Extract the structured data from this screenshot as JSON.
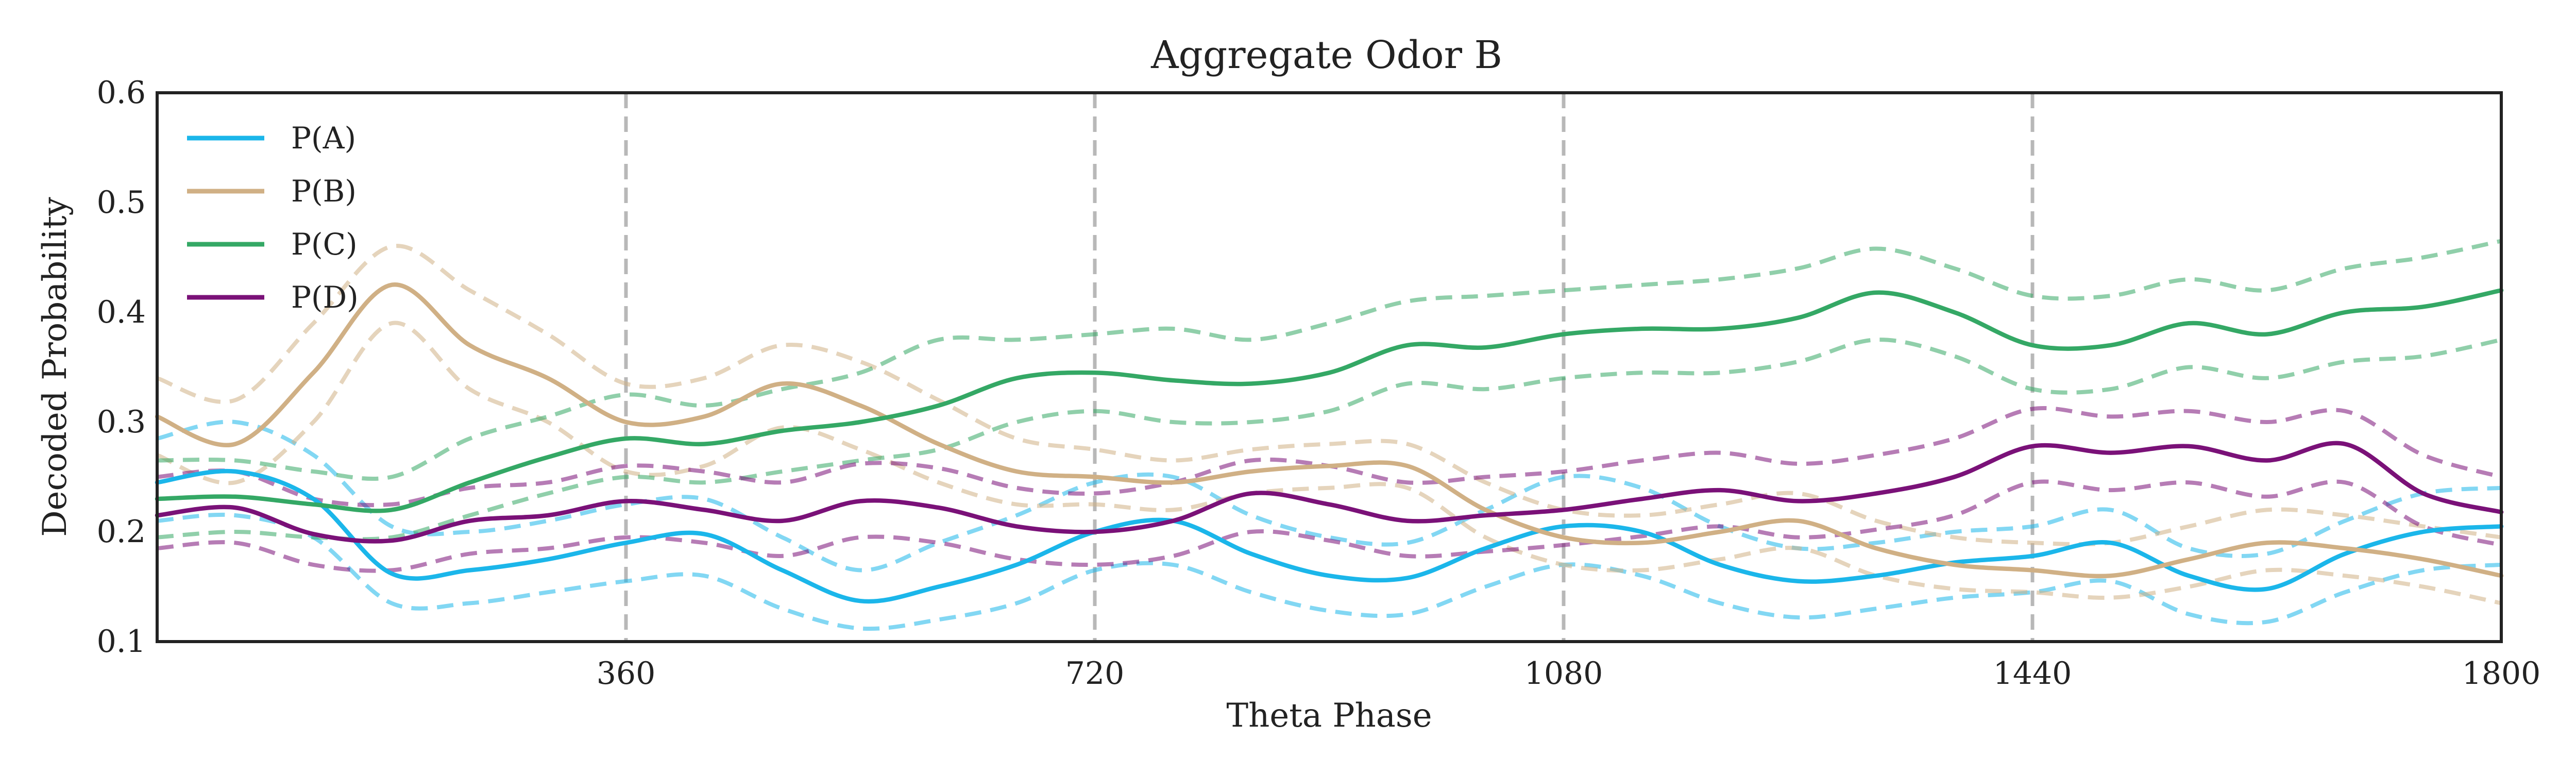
{
  "chart_data": {
    "type": "line",
    "title": "Aggregate Odor B",
    "xlabel": "Theta Phase",
    "ylabel": "Decoded Probability",
    "xlim": [
      0,
      1800
    ],
    "ylim": [
      0.1,
      0.6
    ],
    "xticks": [
      360,
      720,
      1080,
      1440,
      1800
    ],
    "xtick_labels": [
      "360",
      "720",
      "1080",
      "1440",
      "1800"
    ],
    "yticks": [
      0.1,
      0.2,
      0.3,
      0.4,
      0.5,
      0.6
    ],
    "ytick_labels": [
      "0.1",
      "0.2",
      "0.3",
      "0.4",
      "0.5",
      "0.6"
    ],
    "vertical_dashed_lines": [
      360,
      720,
      1080,
      1440
    ],
    "legend_position": "top-left",
    "grid": false,
    "x": [
      0,
      60,
      120,
      180,
      240,
      300,
      360,
      420,
      480,
      540,
      600,
      660,
      720,
      780,
      840,
      900,
      960,
      1020,
      1080,
      1140,
      1200,
      1260,
      1320,
      1380,
      1440,
      1500,
      1560,
      1620,
      1680,
      1740,
      1800
    ],
    "series": [
      {
        "name": "P(A)",
        "color": "#1bb6ea",
        "mean": [
          0.245,
          0.255,
          0.23,
          0.162,
          0.165,
          0.175,
          0.19,
          0.198,
          0.165,
          0.137,
          0.15,
          0.17,
          0.2,
          0.21,
          0.18,
          0.16,
          0.158,
          0.185,
          0.205,
          0.2,
          0.17,
          0.155,
          0.16,
          0.172,
          0.178,
          0.19,
          0.16,
          0.148,
          0.18,
          0.2,
          0.205
        ],
        "upper": [
          0.285,
          0.3,
          0.27,
          0.205,
          0.2,
          0.21,
          0.225,
          0.23,
          0.195,
          0.165,
          0.19,
          0.215,
          0.245,
          0.25,
          0.215,
          0.195,
          0.19,
          0.22,
          0.25,
          0.24,
          0.205,
          0.185,
          0.19,
          0.2,
          0.205,
          0.22,
          0.185,
          0.18,
          0.21,
          0.235,
          0.24
        ],
        "lower": [
          0.21,
          0.215,
          0.195,
          0.135,
          0.135,
          0.145,
          0.155,
          0.16,
          0.13,
          0.112,
          0.12,
          0.135,
          0.165,
          0.17,
          0.145,
          0.128,
          0.125,
          0.15,
          0.17,
          0.16,
          0.135,
          0.122,
          0.13,
          0.14,
          0.145,
          0.155,
          0.125,
          0.118,
          0.145,
          0.165,
          0.17
        ]
      },
      {
        "name": "P(B)",
        "color": "#d0b085",
        "mean": [
          0.305,
          0.28,
          0.345,
          0.425,
          0.37,
          0.34,
          0.3,
          0.305,
          0.335,
          0.315,
          0.28,
          0.255,
          0.25,
          0.245,
          0.255,
          0.26,
          0.26,
          0.22,
          0.195,
          0.19,
          0.2,
          0.21,
          0.185,
          0.17,
          0.165,
          0.16,
          0.175,
          0.19,
          0.185,
          0.175,
          0.16
        ],
        "upper": [
          0.34,
          0.32,
          0.39,
          0.46,
          0.42,
          0.38,
          0.335,
          0.34,
          0.37,
          0.355,
          0.32,
          0.285,
          0.275,
          0.265,
          0.275,
          0.28,
          0.28,
          0.245,
          0.22,
          0.215,
          0.225,
          0.235,
          0.21,
          0.195,
          0.19,
          0.19,
          0.205,
          0.22,
          0.215,
          0.205,
          0.195
        ],
        "lower": [
          0.27,
          0.245,
          0.3,
          0.39,
          0.33,
          0.3,
          0.255,
          0.26,
          0.295,
          0.275,
          0.245,
          0.225,
          0.225,
          0.22,
          0.235,
          0.24,
          0.24,
          0.195,
          0.17,
          0.165,
          0.175,
          0.185,
          0.16,
          0.148,
          0.145,
          0.14,
          0.15,
          0.165,
          0.16,
          0.15,
          0.135
        ]
      },
      {
        "name": "P(C)",
        "color": "#34a865",
        "mean": [
          0.23,
          0.232,
          0.225,
          0.22,
          0.245,
          0.268,
          0.285,
          0.28,
          0.292,
          0.3,
          0.315,
          0.34,
          0.345,
          0.338,
          0.335,
          0.345,
          0.37,
          0.368,
          0.38,
          0.385,
          0.385,
          0.395,
          0.418,
          0.4,
          0.37,
          0.37,
          0.39,
          0.38,
          0.4,
          0.405,
          0.42
        ],
        "upper": [
          0.265,
          0.265,
          0.255,
          0.25,
          0.285,
          0.305,
          0.325,
          0.315,
          0.33,
          0.345,
          0.375,
          0.375,
          0.38,
          0.385,
          0.375,
          0.39,
          0.41,
          0.415,
          0.42,
          0.425,
          0.43,
          0.44,
          0.458,
          0.44,
          0.415,
          0.415,
          0.43,
          0.42,
          0.44,
          0.45,
          0.465
        ],
        "lower": [
          0.195,
          0.2,
          0.195,
          0.195,
          0.215,
          0.235,
          0.25,
          0.245,
          0.255,
          0.265,
          0.275,
          0.3,
          0.31,
          0.3,
          0.3,
          0.31,
          0.335,
          0.33,
          0.34,
          0.345,
          0.345,
          0.355,
          0.375,
          0.36,
          0.33,
          0.33,
          0.35,
          0.34,
          0.355,
          0.36,
          0.375
        ]
      },
      {
        "name": "P(D)",
        "color": "#7a1178",
        "mean": [
          0.215,
          0.222,
          0.198,
          0.192,
          0.21,
          0.215,
          0.228,
          0.22,
          0.21,
          0.228,
          0.222,
          0.205,
          0.2,
          0.21,
          0.235,
          0.225,
          0.21,
          0.215,
          0.22,
          0.23,
          0.238,
          0.228,
          0.235,
          0.25,
          0.278,
          0.272,
          0.278,
          0.265,
          0.28,
          0.235,
          0.218
        ],
        "upper": [
          0.25,
          0.255,
          0.23,
          0.225,
          0.24,
          0.245,
          0.26,
          0.255,
          0.245,
          0.262,
          0.258,
          0.24,
          0.235,
          0.245,
          0.265,
          0.26,
          0.245,
          0.25,
          0.255,
          0.265,
          0.272,
          0.262,
          0.27,
          0.285,
          0.312,
          0.305,
          0.31,
          0.3,
          0.31,
          0.27,
          0.25
        ],
        "lower": [
          0.185,
          0.19,
          0.17,
          0.165,
          0.18,
          0.185,
          0.195,
          0.19,
          0.178,
          0.195,
          0.19,
          0.175,
          0.17,
          0.178,
          0.2,
          0.192,
          0.178,
          0.182,
          0.188,
          0.196,
          0.205,
          0.195,
          0.202,
          0.215,
          0.245,
          0.238,
          0.245,
          0.232,
          0.245,
          0.205,
          0.188
        ]
      }
    ]
  }
}
